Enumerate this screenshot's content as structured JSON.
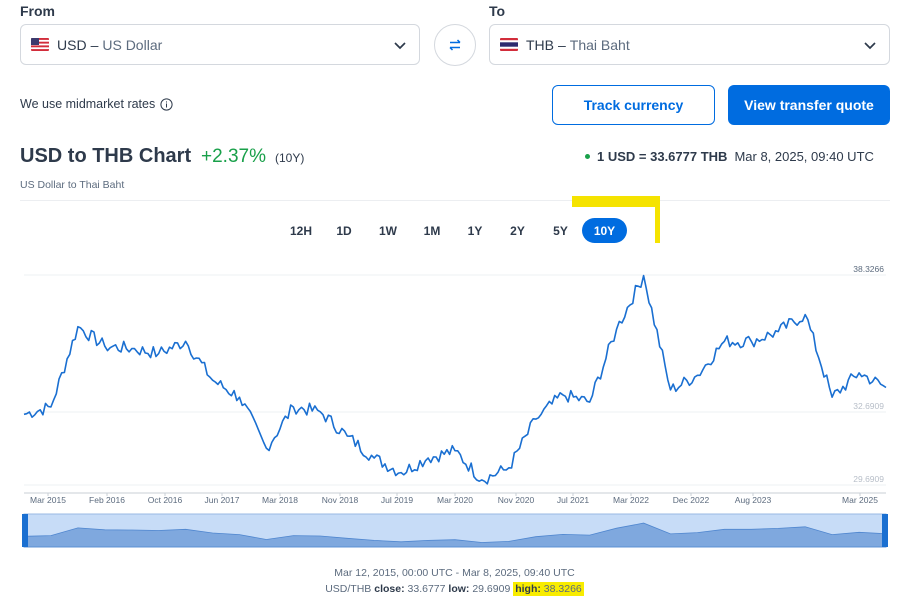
{
  "converter": {
    "from_label": "From",
    "to_label": "To",
    "from": {
      "code": "USD",
      "separator": "–",
      "name": "US Dollar",
      "flag_icon": "us-flag-icon"
    },
    "to": {
      "code": "THB",
      "separator": "–",
      "name": "Thai Baht",
      "flag_icon": "thai-flag-icon"
    }
  },
  "midmarket_text": "We use midmarket rates",
  "buttons": {
    "track": "Track currency",
    "quote": "View transfer quote"
  },
  "header": {
    "title": "USD to THB Chart",
    "change": "+2.37%",
    "period": "(10Y)",
    "subtitle": "US Dollar to Thai Baht",
    "rate": "1 USD = 33.6777 THB",
    "timestamp": "Mar 8, 2025, 09:40 UTC"
  },
  "tabs": [
    "12H",
    "1D",
    "1W",
    "1M",
    "1Y",
    "2Y",
    "5Y",
    "10Y"
  ],
  "active_tab": "10Y",
  "colors": {
    "accent": "#006ce0",
    "positive": "#19a04a",
    "highlight": "#f8ec00",
    "navigator_fill": "#c7dcf7"
  },
  "footer": {
    "range": "Mar 12, 2015, 00:00 UTC - Mar 8, 2025, 09:40 UTC",
    "pair": "USD/THB",
    "close_label": "close:",
    "close": "33.6777",
    "low_label": "low:",
    "low": "29.6909",
    "high_label": "high:",
    "high": "38.3266"
  },
  "chart_data": {
    "type": "line",
    "series": [
      {
        "x": [
          "Mar 2015",
          "Jul 2015",
          "Nov 2015",
          "Feb 2016",
          "Jun 2016",
          "Oct 2016",
          "Feb 2017",
          "Jun 2017",
          "Oct 2017",
          "Mar 2018",
          "Jun 2018",
          "Nov 2018",
          "Mar 2019",
          "Jul 2019",
          "Nov 2019",
          "Mar 2020",
          "Jul 2020",
          "Nov 2020",
          "Mar 2021",
          "Jul 2021",
          "Nov 2021",
          "Mar 2022",
          "Jul 2022",
          "Oct 2022",
          "Jan 2023",
          "Apr 2023",
          "Aug 2023",
          "Dec 2023",
          "Mar 2024",
          "Jul 2024",
          "Oct 2024",
          "Jan 2025",
          "Mar 2025"
        ],
        "values": [
          32.6,
          32.9,
          36.2,
          35.4,
          35.3,
          35.1,
          35.6,
          34.0,
          33.3,
          31.2,
          32.9,
          32.7,
          31.7,
          30.8,
          30.2,
          30.8,
          31.1,
          29.9,
          30.4,
          32.4,
          33.4,
          33.1,
          36.1,
          38.3,
          33.6,
          34.2,
          35.6,
          35.6,
          36.0,
          36.7,
          33.3,
          34.3,
          33.7
        ]
      }
    ],
    "x_ticks": [
      "Mar 2015",
      "Feb 2016",
      "Oct 2016",
      "Jun 2017",
      "Mar 2018",
      "Nov 2018",
      "Jul 2019",
      "Mar 2020",
      "Nov 2020",
      "Jul 2021",
      "Mar 2022",
      "Dec 2022",
      "Aug 2023",
      "Mar 2025"
    ],
    "y_labels": [
      "38.3266",
      "32.6909",
      "29.6909"
    ],
    "ylim": [
      29.6909,
      38.3266
    ]
  }
}
